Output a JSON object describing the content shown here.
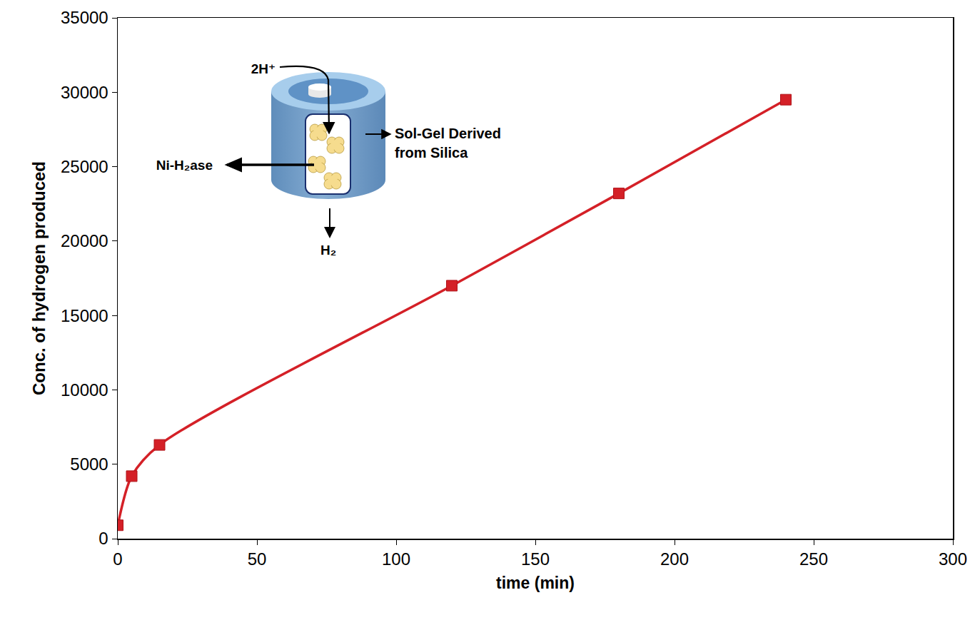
{
  "chart_data": {
    "type": "line",
    "x": [
      0,
      5,
      15,
      120,
      180,
      240
    ],
    "values": [
      900,
      4200,
      6300,
      17000,
      23200,
      29500
    ],
    "color": "#d42027",
    "marker": "square",
    "line_style": "spline",
    "grid": false,
    "xlim": [
      0,
      300
    ],
    "xticks": [
      0,
      50,
      100,
      150,
      200,
      250,
      300
    ],
    "ylim": [
      0,
      35000
    ],
    "yticks": [
      0,
      5000,
      10000,
      15000,
      20000,
      25000,
      30000,
      35000
    ],
    "x_label": "time (min)",
    "y_label": "Conc. of hydrogen produced",
    "annotations": {
      "top_label": "2H⁺",
      "enzyme_label": "Ni-H₂ase",
      "matrix_label": "Sol-Gel Derived from Silica",
      "bottom_label": "H₂"
    }
  }
}
